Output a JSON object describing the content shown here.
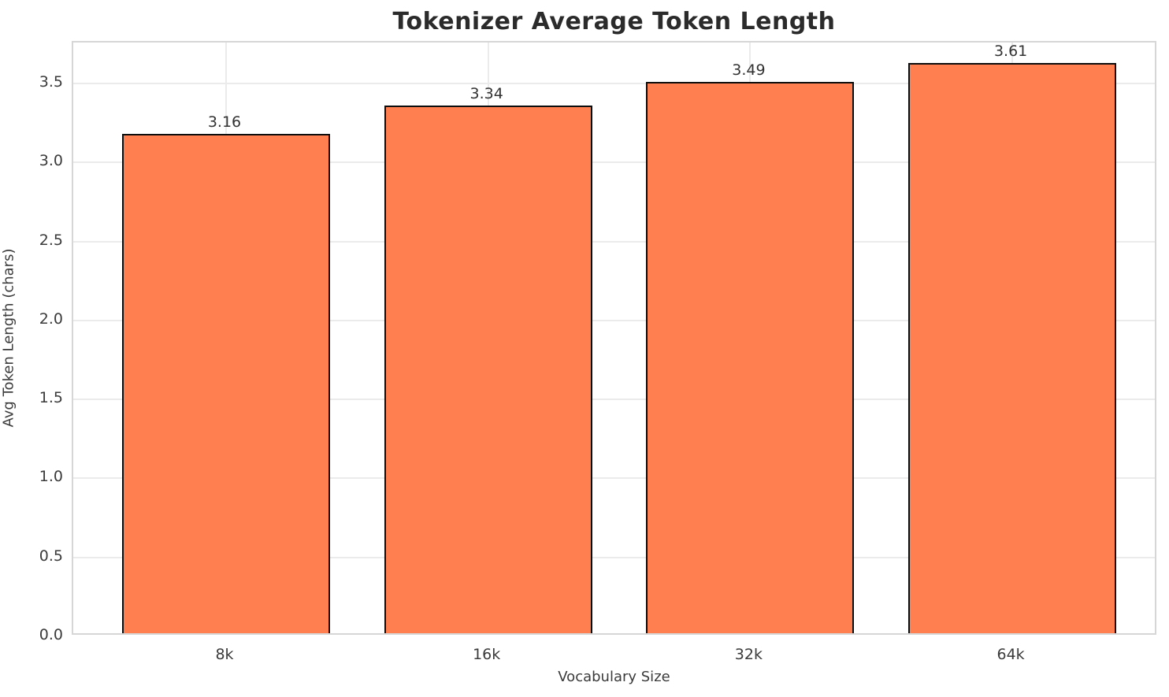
{
  "chart_data": {
    "type": "bar",
    "title": "Tokenizer Average Token Length",
    "xlabel": "Vocabulary Size",
    "ylabel": "Avg Token Length (chars)",
    "categories": [
      "8k",
      "16k",
      "32k",
      "64k"
    ],
    "values": [
      3.16,
      3.34,
      3.49,
      3.61
    ],
    "value_labels": [
      "3.16",
      "3.34",
      "3.49",
      "3.61"
    ],
    "yticks": [
      0.0,
      0.5,
      1.0,
      1.5,
      2.0,
      2.5,
      3.0,
      3.5
    ],
    "ytick_labels": [
      "0.0",
      "0.5",
      "1.0",
      "1.5",
      "2.0",
      "2.5",
      "3.0",
      "3.5"
    ],
    "ylim": [
      0,
      3.76
    ],
    "grid": "on",
    "legend": "none",
    "bar_fill_color": "#ff7f50",
    "bar_edge_color": "#0d0d0d",
    "gridline_color": "#ebebeb",
    "title_color": "#2b2b2b",
    "label_color": "#3b3b3b"
  }
}
